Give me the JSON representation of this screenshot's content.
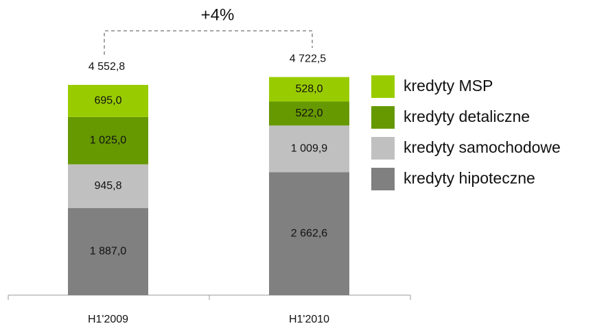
{
  "chart_data": {
    "type": "stacked_bar",
    "categories": [
      "H1'2009",
      "H1'2010"
    ],
    "series": [
      {
        "name": "kredyty hipoteczne",
        "color": "#808080",
        "values": [
          1887.0,
          2662.6
        ],
        "value_labels": [
          "1 887,0",
          "2 662,6"
        ]
      },
      {
        "name": "kredyty samochodowe",
        "color": "#c0c0c0",
        "values": [
          945.8,
          1009.9
        ],
        "value_labels": [
          "945,8",
          "1 009,9"
        ]
      },
      {
        "name": "kredyty detaliczne",
        "color": "#669900",
        "values": [
          1025.0,
          522.0
        ],
        "value_labels": [
          "1 025,0",
          "522,0"
        ]
      },
      {
        "name": "kredyty MSP",
        "color": "#99cc00",
        "values": [
          695.0,
          528.0
        ],
        "value_labels": [
          "695,0",
          "528,0"
        ]
      }
    ],
    "totals": [
      4552.8,
      4722.5
    ],
    "total_labels": [
      "4 552,8",
      "4 722,5"
    ],
    "annotation": "+4%"
  }
}
